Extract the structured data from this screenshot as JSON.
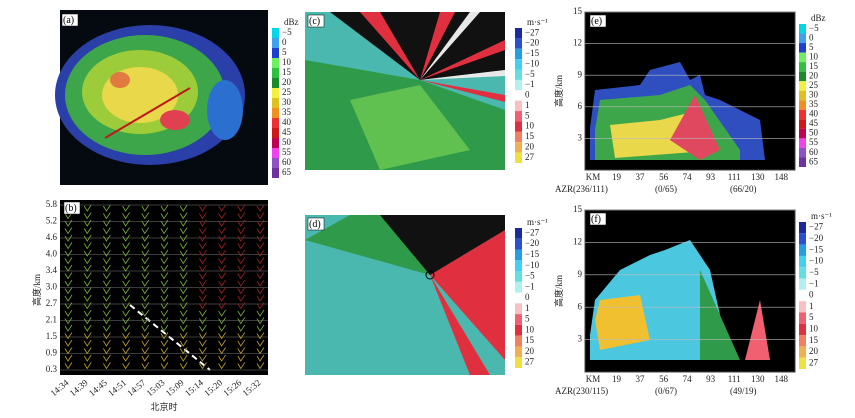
{
  "panels": {
    "a": {
      "label": "(a)",
      "colorbar": {
        "unit": "dBz",
        "labels": [
          "−5",
          "0",
          "5",
          "10",
          "15",
          "20",
          "25",
          "30",
          "35",
          "40",
          "45",
          "50",
          "55",
          "60",
          "65"
        ]
      }
    },
    "b": {
      "label": "(b)",
      "y_label": "高度/km",
      "x_label": "北京时",
      "yticks": [
        "5.8",
        "5.2",
        "4.6",
        "4.0",
        "3.4",
        "3.0",
        "2.7",
        "2.1",
        "1.5",
        "0.9",
        "0.3"
      ],
      "xticks": [
        "14:34",
        "14:39",
        "14:45",
        "14:51",
        "14:57",
        "15:03",
        "15:09",
        "15:14",
        "15:20",
        "15:26",
        "15:32"
      ]
    },
    "c": {
      "label": "(c)",
      "colorbar": {
        "unit": "m·s⁻¹",
        "labels": [
          "−27",
          "−20",
          "−15",
          "−10",
          "−5",
          "−1",
          "0",
          "1",
          "5",
          "10",
          "15",
          "20",
          "27"
        ]
      }
    },
    "d": {
      "label": "(d)",
      "colorbar": {
        "unit": "m·s⁻¹",
        "labels": [
          "−27",
          "−20",
          "−15",
          "−10",
          "−5",
          "−1",
          "0",
          "1",
          "5",
          "10",
          "15",
          "20",
          "27"
        ]
      }
    },
    "e": {
      "label": "(e)",
      "y_label": "高度/km",
      "yticks": [
        "3",
        "6",
        "9",
        "12",
        "15"
      ],
      "xticks": [
        "KM",
        "19",
        "37",
        "56",
        "74",
        "93",
        "111",
        "130",
        "148"
      ],
      "azimuth": [
        "AZR(236/111)",
        "(0/65)",
        "(66/20)"
      ],
      "colorbar": {
        "unit": "dBz",
        "labels": [
          "−5",
          "0",
          "5",
          "10",
          "15",
          "20",
          "25",
          "30",
          "35",
          "40",
          "45",
          "50",
          "55",
          "60",
          "65"
        ]
      }
    },
    "f": {
      "label": "(f)",
      "y_label": "高度/km",
      "yticks": [
        "3",
        "6",
        "9",
        "12",
        "15"
      ],
      "xticks": [
        "KM",
        "19",
        "37",
        "56",
        "74",
        "93",
        "111",
        "130",
        "148"
      ],
      "azimuth": [
        "AZR(230/115)",
        "(0/67)",
        "(49/19)"
      ],
      "colorbar": {
        "unit": "m·s⁻¹",
        "labels": [
          "−27",
          "−20",
          "−15",
          "−10",
          "−5",
          "−1",
          "0",
          "1",
          "5",
          "10",
          "15",
          "20",
          "27"
        ]
      }
    }
  }
}
